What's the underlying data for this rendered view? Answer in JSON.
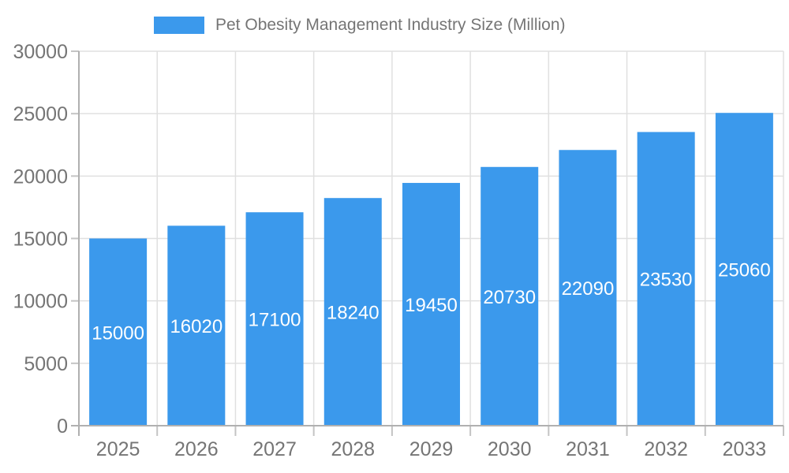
{
  "chart_data": {
    "type": "bar",
    "legend": "Pet Obesity Management Industry Size (Million)",
    "categories": [
      "2025",
      "2026",
      "2027",
      "2028",
      "2029",
      "2030",
      "2031",
      "2032",
      "2033"
    ],
    "values": [
      15000,
      16020,
      17100,
      18240,
      19450,
      20730,
      22090,
      23530,
      25060
    ],
    "xlabel": "",
    "ylabel": "",
    "ylim": [
      0,
      30000
    ],
    "ytick_step": 5000,
    "yticks": [
      "0",
      "5000",
      "10000",
      "15000",
      "20000",
      "25000",
      "30000"
    ],
    "grid": "on",
    "legend_position": "top",
    "bar_color": "#3B99EC",
    "value_label_color": "#ffffff",
    "axis_text_color": "#757575",
    "grid_color": "#e0e0e0",
    "axis_line_color": "#b0b0b0",
    "tick_color": "#c4c4c4"
  }
}
